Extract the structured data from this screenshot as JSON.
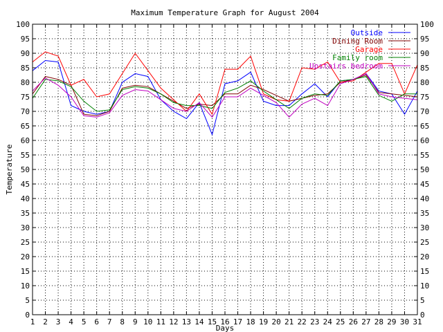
{
  "chart_data": {
    "type": "line",
    "title": "Maximum Temperature Graph for August 2004",
    "xlabel": "Days",
    "ylabel": "Temperature",
    "xlim": [
      1,
      31
    ],
    "ylim": [
      0,
      100
    ],
    "x_ticks": [
      1,
      2,
      3,
      4,
      5,
      6,
      7,
      8,
      9,
      10,
      11,
      12,
      13,
      14,
      15,
      16,
      17,
      18,
      19,
      20,
      21,
      22,
      23,
      24,
      25,
      26,
      27,
      28,
      29,
      30,
      31
    ],
    "y_ticks": [
      0,
      5,
      10,
      15,
      20,
      25,
      30,
      35,
      40,
      45,
      50,
      55,
      60,
      65,
      70,
      75,
      80,
      85,
      90,
      95,
      100
    ],
    "grid": true,
    "legend_position": "top-right",
    "x": [
      1,
      2,
      3,
      4,
      5,
      6,
      7,
      8,
      9,
      10,
      11,
      12,
      13,
      14,
      15,
      16,
      17,
      18,
      19,
      20,
      21,
      22,
      23,
      24,
      25,
      26,
      27,
      28,
      29,
      30,
      31
    ],
    "series": [
      {
        "name": "Outside",
        "color": "#0000ff",
        "values": [
          84,
          87.5,
          87,
          72,
          70,
          69,
          70,
          80,
          83,
          82,
          74,
          70,
          67.5,
          73,
          62,
          79.5,
          80.5,
          83.5,
          73.5,
          72,
          72,
          76,
          79.5,
          75,
          80.5,
          81,
          83,
          77,
          76,
          69,
          77
        ]
      },
      {
        "name": "Dining Room",
        "color": "#800000",
        "values": [
          76,
          82,
          81,
          79,
          69,
          68.5,
          70,
          78,
          79,
          78.5,
          76,
          73.5,
          71,
          72.5,
          72,
          76,
          76,
          79,
          77.5,
          75.5,
          73.5,
          74.5,
          75.5,
          76,
          80,
          81,
          82.5,
          76.5,
          76,
          75.5,
          75
        ]
      },
      {
        "name": "Garage",
        "color": "#ff0000",
        "values": [
          87,
          90.5,
          89,
          79,
          81,
          75,
          76,
          83,
          90,
          84,
          78,
          74,
          70,
          76,
          69,
          84.5,
          84.5,
          89,
          76,
          74,
          73.5,
          85,
          84.5,
          87,
          80,
          80.5,
          83.5,
          86.5,
          86.5,
          76,
          86
        ]
      },
      {
        "name": "Family room",
        "color": "#008000",
        "values": [
          74.5,
          81,
          80.5,
          78.5,
          73.5,
          70,
          70.5,
          77.5,
          78.5,
          78,
          76,
          73,
          72,
          72,
          71,
          76.5,
          78,
          80.5,
          77,
          74,
          71,
          74.5,
          76,
          75.5,
          80.5,
          81,
          82,
          75.5,
          73.5,
          76,
          76
        ]
      },
      {
        "name": "Upstairs bedroom",
        "color": "#c000c0",
        "values": [
          77,
          81.5,
          79,
          75,
          68.5,
          68,
          69.5,
          75.5,
          77.5,
          77,
          74,
          71,
          70,
          73,
          68,
          75,
          75,
          78,
          75.5,
          73,
          68,
          72.5,
          74.5,
          72,
          79.5,
          81,
          83,
          76,
          75,
          74.5,
          74
        ]
      }
    ]
  }
}
